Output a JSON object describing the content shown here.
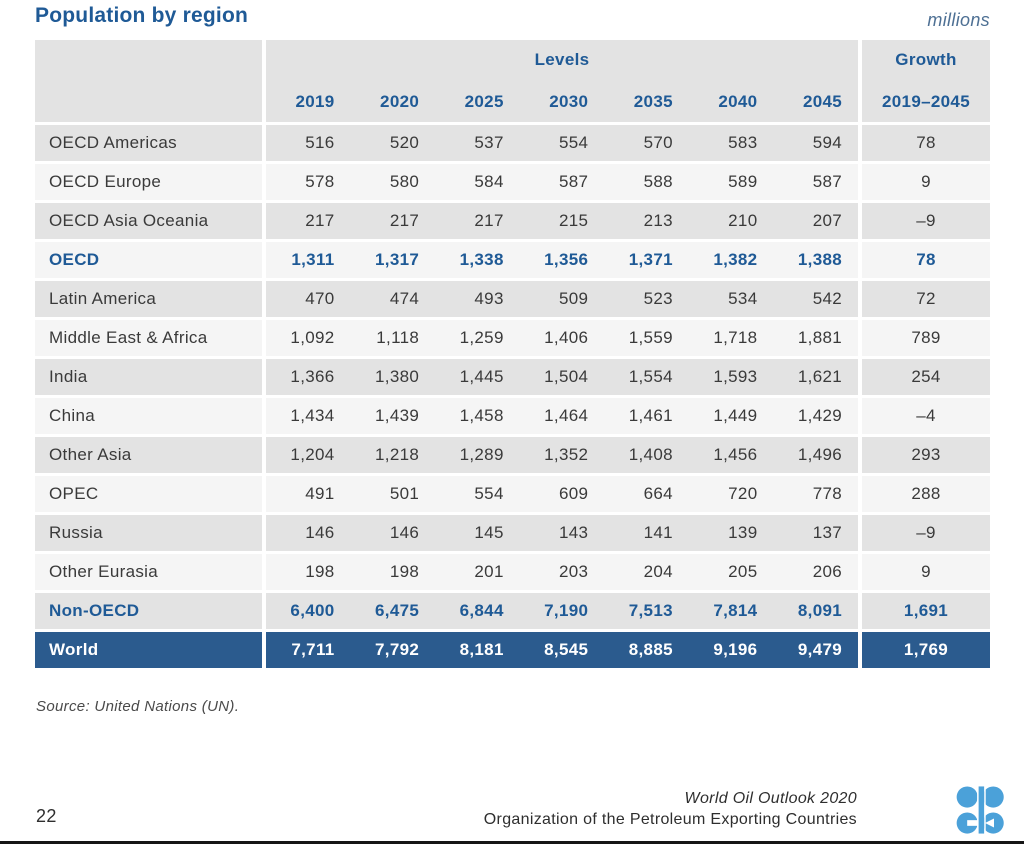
{
  "page": {
    "title": "Population by region",
    "unit_label": "millions",
    "source": "Source: United Nations (UN).",
    "footer": {
      "page_number": "22",
      "publication": "World Oil Outlook 2020",
      "organization": "Organization of the Petroleum Exporting Countries"
    },
    "colors": {
      "accent_blue": "#1f5a96",
      "total_row_bg": "#2b5b8e",
      "row_dark": "#e3e3e3",
      "row_light": "#f5f5f5",
      "logo_blue": "#4ba1d9"
    }
  },
  "chart_data": {
    "type": "table",
    "title": "Population by region",
    "unit": "millions",
    "column_group_labels": {
      "levels": "Levels",
      "growth": "Growth"
    },
    "growth_column_header": "2019–2045",
    "columns": [
      "2019",
      "2020",
      "2025",
      "2030",
      "2035",
      "2040",
      "2045"
    ],
    "rows": [
      {
        "label": "OECD Americas",
        "values": [
          "516",
          "520",
          "537",
          "554",
          "570",
          "583",
          "594"
        ],
        "growth": "78",
        "type": "normal"
      },
      {
        "label": "OECD Europe",
        "values": [
          "578",
          "580",
          "584",
          "587",
          "588",
          "589",
          "587"
        ],
        "growth": "9",
        "type": "normal"
      },
      {
        "label": "OECD Asia Oceania",
        "values": [
          "217",
          "217",
          "217",
          "215",
          "213",
          "210",
          "207"
        ],
        "growth": "–9",
        "type": "normal"
      },
      {
        "label": "OECD",
        "values": [
          "1,311",
          "1,317",
          "1,338",
          "1,356",
          "1,371",
          "1,382",
          "1,388"
        ],
        "growth": "78",
        "type": "subtotal"
      },
      {
        "label": "Latin America",
        "values": [
          "470",
          "474",
          "493",
          "509",
          "523",
          "534",
          "542"
        ],
        "growth": "72",
        "type": "normal"
      },
      {
        "label": "Middle East & Africa",
        "values": [
          "1,092",
          "1,118",
          "1,259",
          "1,406",
          "1,559",
          "1,718",
          "1,881"
        ],
        "growth": "789",
        "type": "normal"
      },
      {
        "label": "India",
        "values": [
          "1,366",
          "1,380",
          "1,445",
          "1,504",
          "1,554",
          "1,593",
          "1,621"
        ],
        "growth": "254",
        "type": "normal"
      },
      {
        "label": "China",
        "values": [
          "1,434",
          "1,439",
          "1,458",
          "1,464",
          "1,461",
          "1,449",
          "1,429"
        ],
        "growth": "–4",
        "type": "normal"
      },
      {
        "label": "Other Asia",
        "values": [
          "1,204",
          "1,218",
          "1,289",
          "1,352",
          "1,408",
          "1,456",
          "1,496"
        ],
        "growth": "293",
        "type": "normal"
      },
      {
        "label": "OPEC",
        "values": [
          "491",
          "501",
          "554",
          "609",
          "664",
          "720",
          "778"
        ],
        "growth": "288",
        "type": "normal"
      },
      {
        "label": "Russia",
        "values": [
          "146",
          "146",
          "145",
          "143",
          "141",
          "139",
          "137"
        ],
        "growth": "–9",
        "type": "normal"
      },
      {
        "label": "Other Eurasia",
        "values": [
          "198",
          "198",
          "201",
          "203",
          "204",
          "205",
          "206"
        ],
        "growth": "9",
        "type": "normal"
      },
      {
        "label": "Non-OECD",
        "values": [
          "6,400",
          "6,475",
          "6,844",
          "7,190",
          "7,513",
          "7,814",
          "8,091"
        ],
        "growth": "1,691",
        "type": "subtotal"
      },
      {
        "label": "World",
        "values": [
          "7,711",
          "7,792",
          "8,181",
          "8,545",
          "8,885",
          "9,196",
          "9,479"
        ],
        "growth": "1,769",
        "type": "total"
      }
    ]
  }
}
